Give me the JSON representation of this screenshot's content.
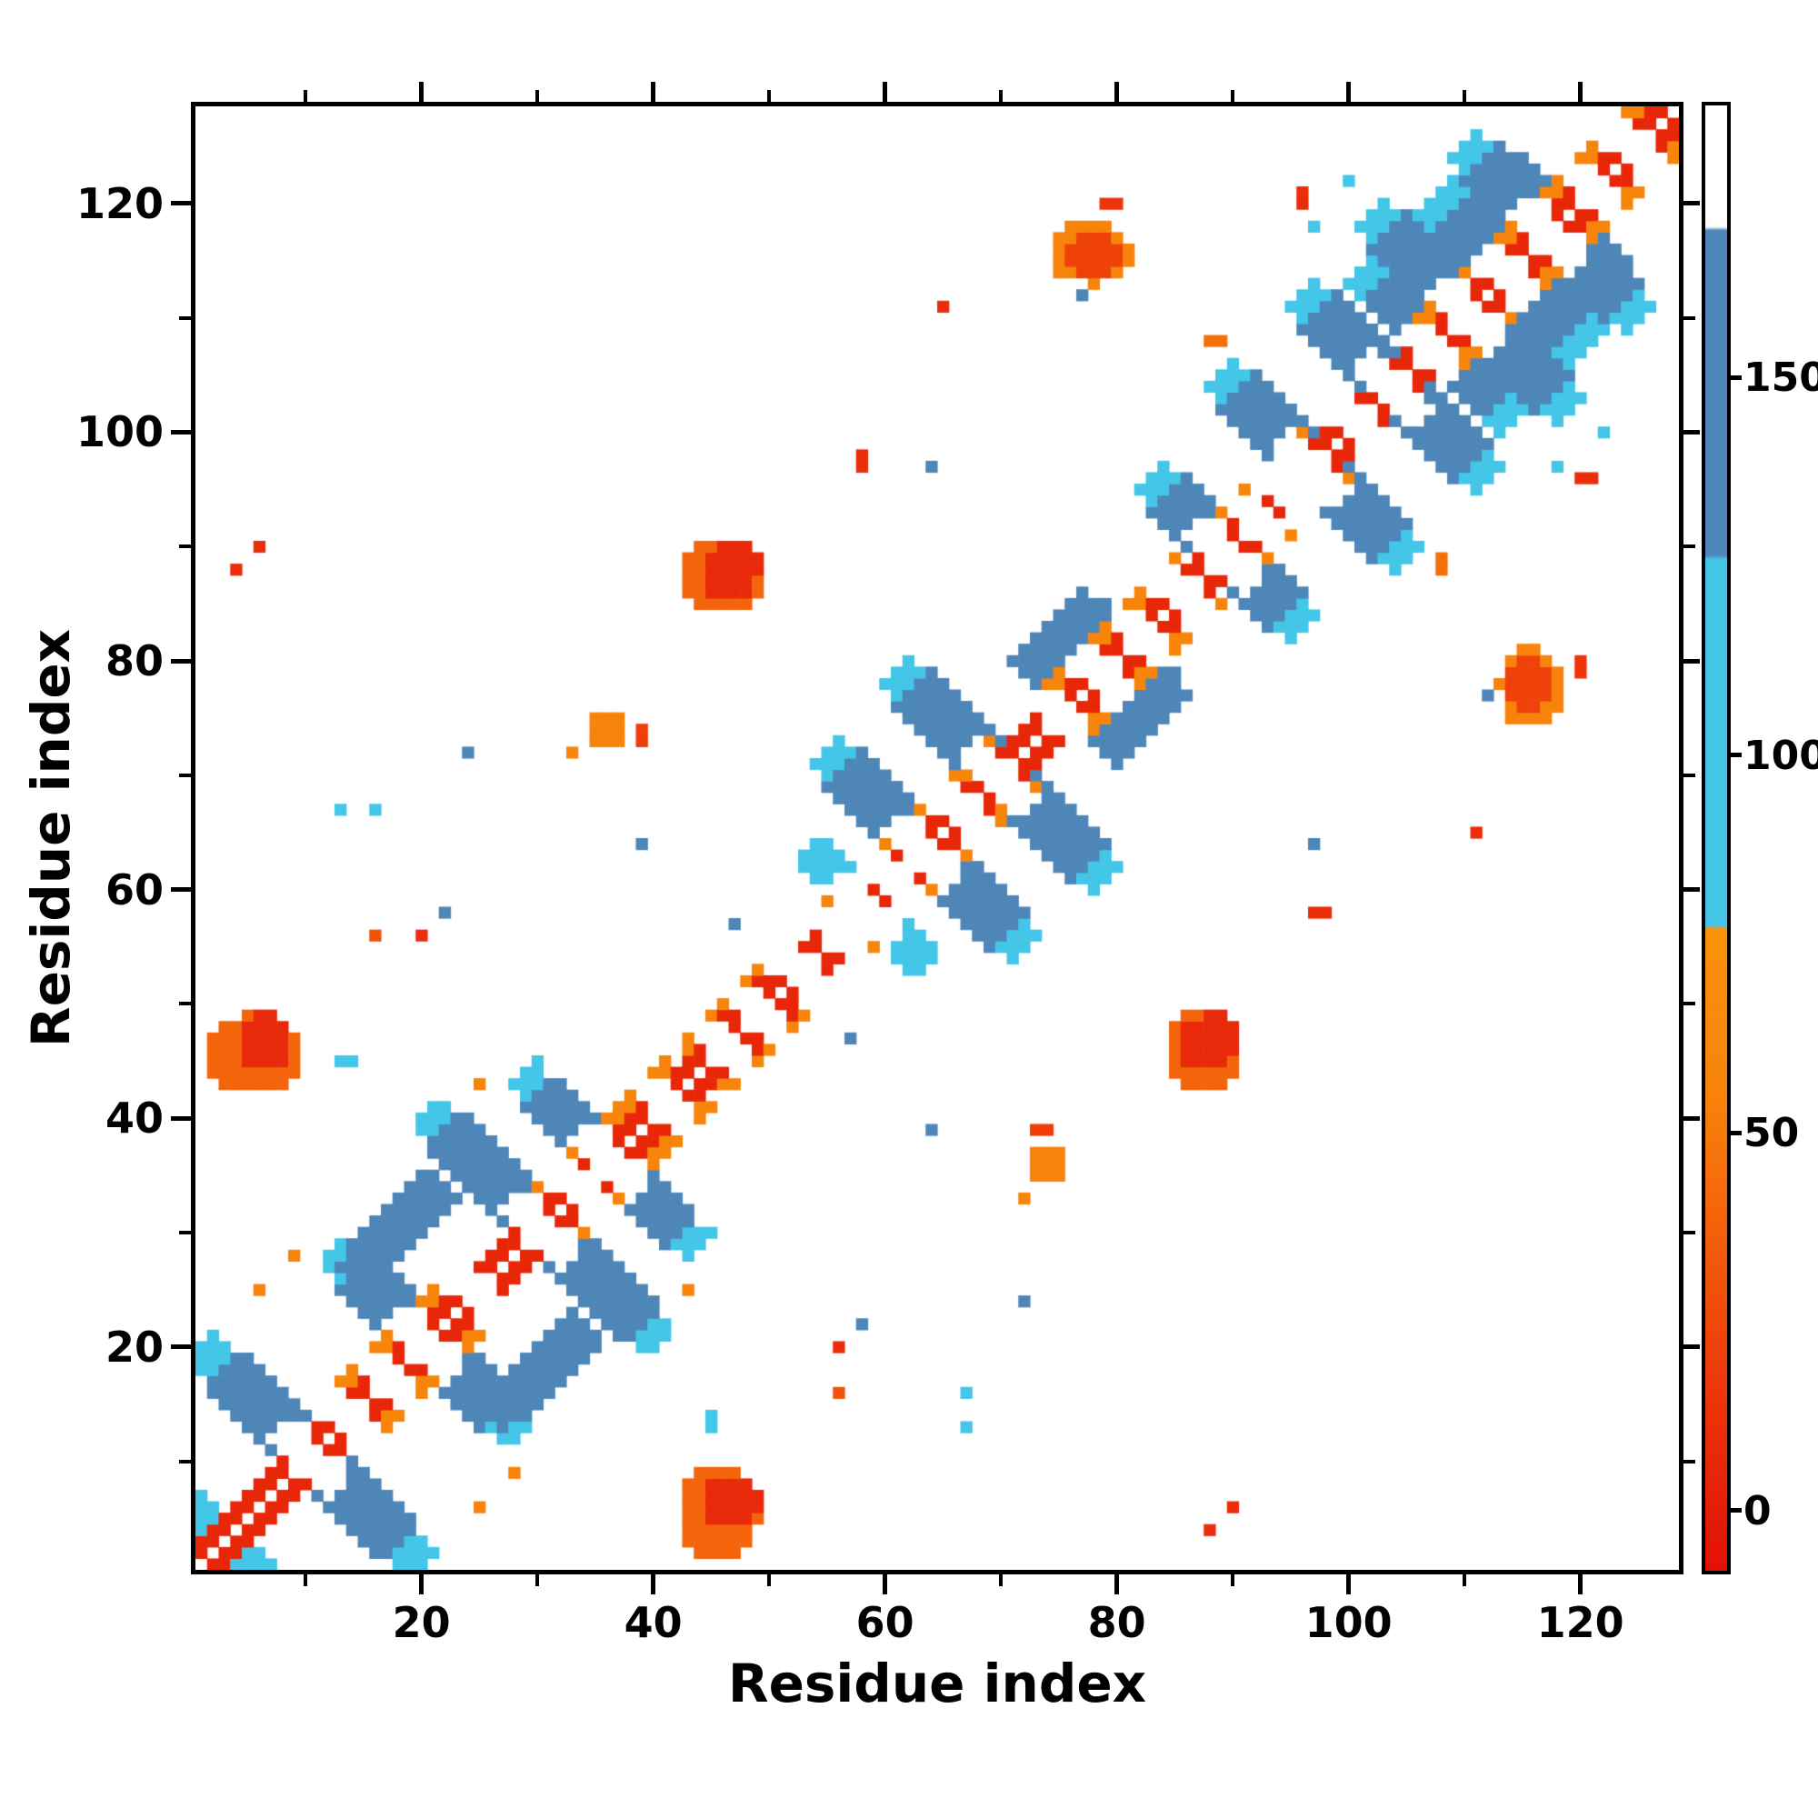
{
  "chart_data": {
    "type": "heatmap",
    "title": "",
    "xlabel": "Residue index",
    "ylabel": "Residue index",
    "n_residues": 128,
    "x_range": [
      1,
      128
    ],
    "y_range": [
      1,
      128
    ],
    "x_ticks": [
      20,
      40,
      60,
      80,
      100,
      120
    ],
    "y_ticks": [
      20,
      40,
      60,
      80,
      100,
      120
    ],
    "minor_ticks": [
      10,
      30,
      50,
      70,
      90,
      110
    ],
    "background": "#ffffff",
    "frame_color": "#000000",
    "colorbar": {
      "ticks": [
        0,
        50,
        100,
        150
      ],
      "range": [
        -8,
        186
      ],
      "white_above": 170
    },
    "colormap": [
      {
        "v": -10,
        "c": "#e00d07"
      },
      {
        "v": 18,
        "c": "#ee3a0b"
      },
      {
        "v": 55,
        "c": "#f8830b"
      },
      {
        "v": 77,
        "c": "#fa9108"
      },
      {
        "v": 77.5,
        "c": "#43c6e8"
      },
      {
        "v": 126,
        "c": "#43c6e8"
      },
      {
        "v": 126.5,
        "c": "#4e86b8"
      },
      {
        "v": 169.5,
        "c": "#4e86b8"
      },
      {
        "v": 170,
        "c": "#ffffff"
      },
      {
        "v": 200,
        "c": "#ffffff"
      }
    ],
    "features": [
      {
        "t": "x",
        "c": 3,
        "L": 3,
        "w": 1.8,
        "v": 100
      },
      {
        "t": "x",
        "c": 10.5,
        "L": 9.5,
        "w": 2.0,
        "v": 100
      },
      {
        "t": "x",
        "c": 20.5,
        "L": 8,
        "w": 1.6,
        "v": 100
      },
      {
        "t": "x",
        "c": 30.5,
        "L": 10,
        "w": 2,
        "v": 100
      },
      {
        "t": "x",
        "c": 36.5,
        "L": 7.5,
        "w": 1.4,
        "v": 100
      },
      {
        "t": "x",
        "c": 58.5,
        "L": 5,
        "w": 1.6,
        "v": 100
      },
      {
        "t": "x",
        "c": 63.5,
        "L": 8.5,
        "w": 2,
        "v": 100
      },
      {
        "t": "x",
        "c": 70,
        "L": 9,
        "w": 2,
        "v": 100
      },
      {
        "t": "x",
        "c": 89.5,
        "L": 6.5,
        "w": 2,
        "v": 100
      },
      {
        "t": "x",
        "c": 97,
        "L": 8,
        "w": 2,
        "v": 100
      },
      {
        "t": "x",
        "c": 104,
        "L": 8,
        "w": 2,
        "v": 100
      },
      {
        "t": "x",
        "c": 110.5,
        "L": 8.5,
        "w": 2,
        "v": 100
      },
      {
        "t": "x",
        "c": 117.5,
        "L": 7.5,
        "w": 2,
        "v": 100
      },
      {
        "t": "p",
        "x": 101,
        "y": 112,
        "len": 11,
        "w": 1.4,
        "v": 100
      },
      {
        "t": "x",
        "c": 10.5,
        "L": 7.5,
        "w": 3,
        "v": 150
      },
      {
        "t": "x",
        "c": 20.5,
        "L": 6,
        "w": 2.6,
        "v": 150
      },
      {
        "t": "x",
        "c": 30.5,
        "L": 8.5,
        "w": 3,
        "v": 150
      },
      {
        "t": "x",
        "c": 36.5,
        "L": 6,
        "w": 2.4,
        "v": 150
      },
      {
        "t": "x",
        "c": 63.5,
        "L": 7,
        "w": 3,
        "v": 150
      },
      {
        "t": "x",
        "c": 70,
        "L": 7.5,
        "w": 3,
        "v": 150
      },
      {
        "t": "x",
        "c": 89.5,
        "L": 5,
        "w": 2.6,
        "v": 150
      },
      {
        "t": "x",
        "c": 97,
        "L": 6.5,
        "w": 3,
        "v": 150
      },
      {
        "t": "x",
        "c": 104,
        "L": 6.5,
        "w": 3,
        "v": 150
      },
      {
        "t": "x",
        "c": 110.5,
        "L": 7,
        "w": 3,
        "v": 150
      },
      {
        "t": "x",
        "c": 117.5,
        "L": 6,
        "w": 2.8,
        "v": 150
      },
      {
        "t": "p",
        "x": 14,
        "y": 26,
        "len": 8,
        "w": 2.2,
        "v": 150
      },
      {
        "t": "p",
        "x": 72,
        "y": 79,
        "len": 6,
        "w": 2,
        "v": 150
      },
      {
        "t": "p",
        "x": 103,
        "y": 110,
        "len": 13,
        "w": 2.4,
        "v": 150
      },
      {
        "t": "d",
        "a": 11,
        "b": 22,
        "o1": 2,
        "o2": 4,
        "v": 58
      },
      {
        "t": "d",
        "a": 28,
        "b": 41,
        "o1": 2,
        "o2": 4,
        "v": 58
      },
      {
        "t": "d",
        "a": 43,
        "b": 51,
        "o1": 2,
        "o2": 4,
        "v": 58
      },
      {
        "t": "d",
        "a": 55,
        "b": 61,
        "o1": 2,
        "o2": 4,
        "v": 58
      },
      {
        "t": "d",
        "a": 62,
        "b": 69,
        "o1": 2,
        "o2": 4,
        "v": 58
      },
      {
        "t": "d",
        "a": 73,
        "b": 85,
        "o1": 2,
        "o2": 4,
        "v": 58
      },
      {
        "t": "d",
        "a": 87,
        "b": 96,
        "o1": 2,
        "o2": 4,
        "v": 58
      },
      {
        "t": "d",
        "a": 106,
        "b": 127,
        "o1": 2,
        "o2": 4,
        "v": 58
      },
      {
        "t": "d",
        "a": 1,
        "b": 128,
        "o1": 1,
        "o2": 2,
        "v": 6
      },
      {
        "t": "d",
        "a": 44,
        "b": 50,
        "o1": 1,
        "o2": 3,
        "v": 6
      },
      {
        "t": "d",
        "a": 56,
        "b": 60,
        "o1": 1,
        "o2": 3,
        "v": 6
      },
      {
        "t": "b",
        "x": 5.5,
        "y": 45.5,
        "rx": 3.5,
        "ry": 3.2,
        "v": 40
      },
      {
        "t": "b",
        "x": 6.5,
        "y": 46.5,
        "rx": 2,
        "ry": 2.3,
        "v": 8
      },
      {
        "t": "b",
        "x": 46,
        "y": 87.5,
        "rx": 3.4,
        "ry": 2.8,
        "v": 40
      },
      {
        "t": "b",
        "x": 46.5,
        "y": 88,
        "rx": 2.3,
        "ry": 1.9,
        "v": 8
      },
      {
        "t": "b",
        "x": 77.5,
        "y": 115.5,
        "rx": 3.3,
        "ry": 2.2,
        "v": 55
      },
      {
        "t": "b",
        "x": 78,
        "y": 115.5,
        "rx": 2.2,
        "ry": 1.5,
        "v": 22
      },
      {
        "t": "b",
        "x": 36,
        "y": 74,
        "rx": 1.6,
        "ry": 1.1,
        "v": 55
      },
      {
        "t": "o",
        "x": 65.5,
        "y": 111.5,
        "s": 1.3,
        "v": 10
      },
      {
        "t": "o",
        "x": 58,
        "y": 97.5,
        "s": 1.8,
        "v": 10
      },
      {
        "t": "o",
        "x": 64,
        "y": 97,
        "s": 1.1,
        "v": 150
      },
      {
        "t": "o",
        "x": 96,
        "y": 120.5,
        "s": 1.4,
        "v": 10
      },
      {
        "t": "o",
        "x": 97.5,
        "y": 118.5,
        "s": 1.1,
        "v": 100
      },
      {
        "t": "o",
        "x": 100,
        "y": 122,
        "s": 1.1,
        "v": 100
      },
      {
        "t": "o",
        "x": 88.5,
        "y": 108,
        "s": 2,
        "v": 45
      },
      {
        "t": "o",
        "x": 77,
        "y": 112,
        "s": 1.1,
        "v": 150
      },
      {
        "t": "o",
        "x": 33.5,
        "y": 72,
        "s": 1.1,
        "v": 58
      },
      {
        "t": "o",
        "x": 39,
        "y": 73.5,
        "s": 1.5,
        "v": 20
      },
      {
        "t": "o",
        "x": 16,
        "y": 56.5,
        "s": 1.2,
        "v": 30
      },
      {
        "t": "o",
        "x": 20,
        "y": 56,
        "s": 1.2,
        "v": 10
      },
      {
        "t": "o",
        "x": 22.5,
        "y": 58,
        "s": 1.1,
        "v": 150
      },
      {
        "t": "o",
        "x": 13,
        "y": 67,
        "s": 1.1,
        "v": 100
      },
      {
        "t": "o",
        "x": 16,
        "y": 67,
        "s": 1.1,
        "v": 100
      },
      {
        "t": "o",
        "x": 24.5,
        "y": 72,
        "s": 1.1,
        "v": 150
      },
      {
        "t": "o",
        "x": 39,
        "y": 64,
        "s": 1.1,
        "v": 150
      },
      {
        "t": "o",
        "x": 47,
        "y": 57,
        "s": 1.1,
        "v": 150
      },
      {
        "t": "o",
        "x": 43,
        "y": 25,
        "s": 1.6,
        "v": 55
      },
      {
        "t": "o",
        "x": 45,
        "y": 13.5,
        "s": 1.6,
        "v": 100
      },
      {
        "t": "o",
        "x": 4,
        "y": 88,
        "s": 1.2,
        "v": 10
      },
      {
        "t": "o",
        "x": 6,
        "y": 90,
        "s": 1.1,
        "v": 10
      },
      {
        "t": "o",
        "x": 25,
        "y": 6,
        "s": 1.2,
        "v": 55
      },
      {
        "t": "o",
        "x": 28,
        "y": 9,
        "s": 1.2,
        "v": 55
      },
      {
        "t": "o",
        "x": 79.5,
        "y": 120,
        "s": 1.5,
        "v": 15
      },
      {
        "t": "c",
        "c": 10.5,
        "L": 2.4,
        "w": 1.3
      },
      {
        "t": "c",
        "c": 20.5,
        "L": 2.4,
        "w": 1.3
      },
      {
        "t": "c",
        "c": 30.5,
        "L": 2.4,
        "w": 1.3
      },
      {
        "t": "c",
        "c": 36.5,
        "L": 2.4,
        "w": 1.3
      },
      {
        "t": "c",
        "c": 58.5,
        "L": 2.4,
        "w": 1.3
      },
      {
        "t": "c",
        "c": 63.5,
        "L": 2.4,
        "w": 1.3
      },
      {
        "t": "c",
        "c": 70,
        "L": 2.4,
        "w": 1.3
      },
      {
        "t": "c",
        "c": 89.5,
        "L": 2.4,
        "w": 1.3
      },
      {
        "t": "c",
        "c": 97,
        "L": 2.4,
        "w": 1.3
      },
      {
        "t": "c",
        "c": 104,
        "L": 2.4,
        "w": 1.3
      },
      {
        "t": "c",
        "c": 110.5,
        "L": 2.4,
        "w": 1.3
      },
      {
        "t": "c",
        "c": 117.5,
        "L": 2.4,
        "w": 1.3
      },
      {
        "t": "c",
        "c": 13.5,
        "L": 1.8,
        "w": 1.2
      },
      {
        "t": "c",
        "c": 17,
        "L": 1.8,
        "w": 1.2
      },
      {
        "t": "c",
        "c": 24.5,
        "L": 1.8,
        "w": 1.2
      },
      {
        "t": "c",
        "c": 33.5,
        "L": 1.8,
        "w": 1.2
      },
      {
        "t": "c",
        "c": 41,
        "L": 1.8,
        "w": 1.2
      },
      {
        "t": "c",
        "c": 46,
        "L": 1.8,
        "w": 1.2
      },
      {
        "t": "c",
        "c": 49,
        "L": 1.8,
        "w": 1.2
      },
      {
        "t": "c",
        "c": 52.5,
        "L": 1.8,
        "w": 1.2
      },
      {
        "t": "c",
        "c": 56,
        "L": 1.8,
        "w": 1.2
      },
      {
        "t": "c",
        "c": 60.5,
        "L": 1.8,
        "w": 1.2
      },
      {
        "t": "c",
        "c": 66.5,
        "L": 1.8,
        "w": 1.2
      },
      {
        "t": "c",
        "c": 75,
        "L": 1.8,
        "w": 1.2
      },
      {
        "t": "c",
        "c": 78.5,
        "L": 1.8,
        "w": 1.2
      },
      {
        "t": "c",
        "c": 82,
        "L": 1.8,
        "w": 1.2
      },
      {
        "t": "c",
        "c": 85.5,
        "L": 1.8,
        "w": 1.2
      },
      {
        "t": "c",
        "c": 92,
        "L": 1.8,
        "w": 1.2
      },
      {
        "t": "c",
        "c": 94.5,
        "L": 1.8,
        "w": 1.2
      },
      {
        "t": "c",
        "c": 100.5,
        "L": 1.8,
        "w": 1.2
      },
      {
        "t": "c",
        "c": 107,
        "L": 1.8,
        "w": 1.2
      },
      {
        "t": "c",
        "c": 113.5,
        "L": 1.8,
        "w": 1.2
      },
      {
        "t": "c",
        "c": 121,
        "L": 1.8,
        "w": 1.2
      },
      {
        "t": "c",
        "c": 124.5,
        "L": 1.8,
        "w": 1.2
      }
    ]
  }
}
